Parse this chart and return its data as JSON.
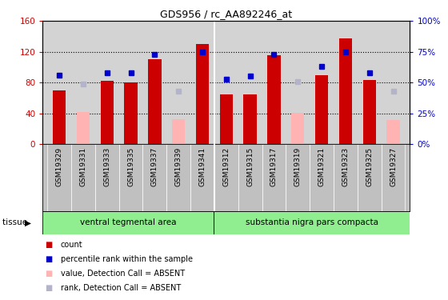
{
  "title": "GDS956 / rc_AA892246_at",
  "categories": [
    "GSM19329",
    "GSM19331",
    "GSM19333",
    "GSM19335",
    "GSM19337",
    "GSM19339",
    "GSM19341",
    "GSM19312",
    "GSM19315",
    "GSM19317",
    "GSM19319",
    "GSM19321",
    "GSM19323",
    "GSM19325",
    "GSM19327"
  ],
  "count_values": [
    70,
    null,
    82,
    80,
    110,
    null,
    130,
    65,
    65,
    116,
    null,
    90,
    137,
    83,
    null
  ],
  "absent_count_values": [
    null,
    42,
    null,
    null,
    null,
    32,
    null,
    null,
    null,
    null,
    41,
    null,
    null,
    null,
    31
  ],
  "rank_values": [
    56,
    null,
    58,
    58,
    73,
    null,
    75,
    53,
    55,
    73,
    null,
    63,
    75,
    58,
    null
  ],
  "absent_rank_values": [
    null,
    49,
    null,
    null,
    null,
    43,
    null,
    null,
    null,
    null,
    51,
    null,
    null,
    null,
    43
  ],
  "group1_label": "ventral tegmental area",
  "group2_label": "substantia nigra pars compacta",
  "group1_count": 7,
  "group2_count": 8,
  "ylim_left": [
    0,
    160
  ],
  "ylim_right": [
    0,
    100
  ],
  "yticks_left": [
    0,
    40,
    80,
    120,
    160
  ],
  "ytick_labels_left": [
    "0",
    "40",
    "80",
    "120",
    "160"
  ],
  "yticks_right": [
    0,
    25,
    50,
    75,
    100
  ],
  "ytick_labels_right": [
    "0%",
    "25%",
    "50%",
    "75%",
    "100%"
  ],
  "bar_color": "#cc0000",
  "absent_bar_color": "#ffb3b3",
  "rank_color": "#0000cc",
  "absent_rank_color": "#b3b3cc",
  "bg_color": "#d3d3d3",
  "tick_bg_color": "#c0c0c0",
  "group_bg": "#90ee90",
  "bar_width": 0.55,
  "grid_dotted_color": "black",
  "n_total": 15
}
